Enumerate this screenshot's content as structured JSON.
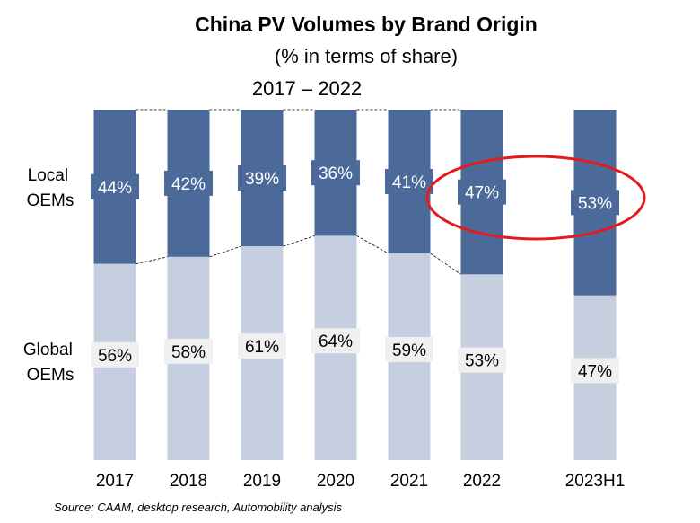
{
  "chart_data": {
    "type": "bar",
    "stacked": true,
    "title": "China PV Volumes by Brand Origin",
    "subtitle": "(% in terms of share)",
    "period_label": "2017 – 2022",
    "categories": [
      "2017",
      "2018",
      "2019",
      "2020",
      "2021",
      "2022",
      "2023H1"
    ],
    "series": [
      {
        "name": "Global OEMs",
        "name_lines": [
          "Global",
          "OEMs"
        ],
        "values": [
          56,
          58,
          61,
          64,
          59,
          53,
          47
        ],
        "labels": [
          "56%",
          "58%",
          "61%",
          "64%",
          "59%",
          "53%",
          "47%"
        ]
      },
      {
        "name": "Local OEMs",
        "name_lines": [
          "Local",
          "OEMs"
        ],
        "values": [
          44,
          42,
          39,
          36,
          41,
          47,
          53
        ],
        "labels": [
          "44%",
          "42%",
          "39%",
          "36%",
          "41%",
          "47%",
          "53%"
        ]
      }
    ],
    "ylim": [
      0,
      100
    ],
    "source": "Source: CAAM, desktop research, Automobility analysis",
    "highlight": {
      "categories": [
        "2022",
        "2023H1"
      ],
      "series": "Local OEMs",
      "shape": "ellipse",
      "color": "#e41a1c"
    },
    "colors": {
      "Global OEMs": "#c5cfe0",
      "Local OEMs": "#4b6a9a",
      "label_box": "#f0f0f0"
    }
  }
}
